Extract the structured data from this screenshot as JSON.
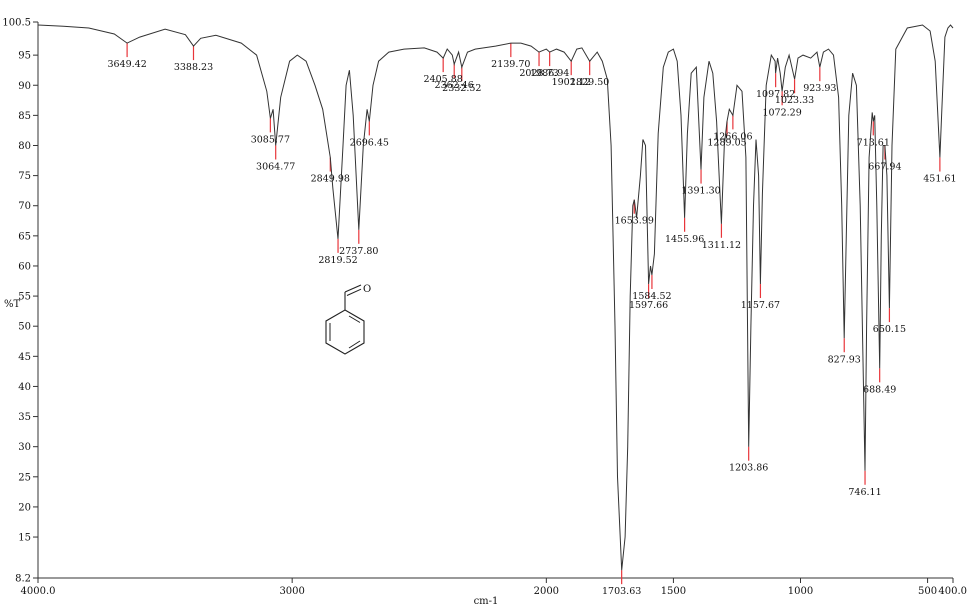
{
  "chart_data": {
    "type": "line",
    "title": "",
    "xlabel": "cm-1",
    "ylabel": "%T",
    "xlim": [
      4000.0,
      400.0
    ],
    "ylim": [
      8.2,
      100.5
    ],
    "x_reversed": true,
    "x_ticks": [
      {
        "value": 4000,
        "label": "4000.0"
      },
      {
        "value": 3000,
        "label": "3000"
      },
      {
        "value": 2000,
        "label": "2000"
      },
      {
        "value": 1500,
        "label": "1500"
      },
      {
        "value": 1000,
        "label": "1000"
      },
      {
        "value": 500,
        "label": "500"
      },
      {
        "value": 400,
        "label": "400.0"
      }
    ],
    "y_ticks": [
      {
        "value": 100.5,
        "label": "100.5"
      },
      {
        "value": 95,
        "label": "95"
      },
      {
        "value": 90,
        "label": "90"
      },
      {
        "value": 85,
        "label": "85"
      },
      {
        "value": 80,
        "label": "80"
      },
      {
        "value": 75,
        "label": "75"
      },
      {
        "value": 70,
        "label": "70"
      },
      {
        "value": 65,
        "label": "65"
      },
      {
        "value": 60,
        "label": "60"
      },
      {
        "value": 55,
        "label": "55"
      },
      {
        "value": 50,
        "label": "50"
      },
      {
        "value": 45,
        "label": "45"
      },
      {
        "value": 40,
        "label": "40"
      },
      {
        "value": 35,
        "label": "35"
      },
      {
        "value": 30,
        "label": "30"
      },
      {
        "value": 25,
        "label": "25"
      },
      {
        "value": 20,
        "label": "20"
      },
      {
        "value": 15,
        "label": "15"
      },
      {
        "value": 8.2,
        "label": "8.2"
      }
    ],
    "grid": false,
    "line_color": "#333333",
    "marker_color": "#e8353a",
    "series": [
      {
        "points": [
          [
            4000,
            100.0
          ],
          [
            3900,
            99.8
          ],
          [
            3800,
            99.5
          ],
          [
            3700,
            98.5
          ],
          [
            3649.42,
            97.0
          ],
          [
            3600,
            98.0
          ],
          [
            3500,
            99.3
          ],
          [
            3420,
            98.4
          ],
          [
            3388.23,
            96.5
          ],
          [
            3360,
            97.8
          ],
          [
            3300,
            98.3
          ],
          [
            3200,
            97.0
          ],
          [
            3140,
            95.0
          ],
          [
            3100,
            89.0
          ],
          [
            3085.77,
            84.5
          ],
          [
            3075,
            86.0
          ],
          [
            3064.77,
            80.0
          ],
          [
            3045,
            88.0
          ],
          [
            3010,
            94.0
          ],
          [
            2980,
            95.0
          ],
          [
            2945,
            94.0
          ],
          [
            2910,
            90.0
          ],
          [
            2880,
            86.0
          ],
          [
            2849.98,
            78.0
          ],
          [
            2840,
            73.0
          ],
          [
            2819.52,
            64.5
          ],
          [
            2800,
            80.0
          ],
          [
            2788,
            90.0
          ],
          [
            2775,
            92.5
          ],
          [
            2760,
            85.0
          ],
          [
            2737.8,
            66.0
          ],
          [
            2720,
            80.0
          ],
          [
            2705,
            86.0
          ],
          [
            2696.45,
            84.0
          ],
          [
            2682,
            90.0
          ],
          [
            2660,
            94.0
          ],
          [
            2620,
            95.5
          ],
          [
            2560,
            96.0
          ],
          [
            2480,
            96.2
          ],
          [
            2430,
            95.5
          ],
          [
            2405.88,
            94.5
          ],
          [
            2390,
            96.0
          ],
          [
            2370,
            95.0
          ],
          [
            2362.46,
            93.5
          ],
          [
            2345,
            95.5
          ],
          [
            2332.52,
            93.0
          ],
          [
            2310,
            95.5
          ],
          [
            2280,
            96.0
          ],
          [
            2200,
            96.5
          ],
          [
            2139.7,
            97.0
          ],
          [
            2100,
            97.0
          ],
          [
            2060,
            96.5
          ],
          [
            2028.73,
            95.5
          ],
          [
            2000,
            96.0
          ],
          [
            1986.94,
            95.5
          ],
          [
            1960,
            96.0
          ],
          [
            1930,
            95.5
          ],
          [
            1902.12,
            94.0
          ],
          [
            1880,
            96.0
          ],
          [
            1860,
            96.2
          ],
          [
            1829.5,
            94.0
          ],
          [
            1800,
            95.5
          ],
          [
            1780,
            94.0
          ],
          [
            1760,
            91.0
          ],
          [
            1745,
            80.0
          ],
          [
            1730,
            50.0
          ],
          [
            1720,
            25.0
          ],
          [
            1703.63,
            9.5
          ],
          [
            1690,
            15.0
          ],
          [
            1680,
            30.0
          ],
          [
            1670,
            55.0
          ],
          [
            1660,
            70.0
          ],
          [
            1653.99,
            71.0
          ],
          [
            1645,
            68.0
          ],
          [
            1630,
            75.0
          ],
          [
            1620,
            81.0
          ],
          [
            1610,
            80.0
          ],
          [
            1597.66,
            57.0
          ],
          [
            1590,
            60.0
          ],
          [
            1584.52,
            58.5
          ],
          [
            1575,
            62.0
          ],
          [
            1560,
            82.0
          ],
          [
            1540,
            93.0
          ],
          [
            1520,
            95.5
          ],
          [
            1500,
            96.0
          ],
          [
            1485,
            94.0
          ],
          [
            1470,
            85.0
          ],
          [
            1455.96,
            68.0
          ],
          [
            1445,
            82.0
          ],
          [
            1430,
            92.0
          ],
          [
            1410,
            93.0
          ],
          [
            1391.3,
            76.0
          ],
          [
            1380,
            88.0
          ],
          [
            1360,
            94.0
          ],
          [
            1345,
            92.0
          ],
          [
            1330,
            84.0
          ],
          [
            1311.12,
            67.0
          ],
          [
            1300,
            80.0
          ],
          [
            1289.05,
            84.0
          ],
          [
            1280,
            86.0
          ],
          [
            1266.06,
            85.0
          ],
          [
            1250,
            90.0
          ],
          [
            1230,
            89.0
          ],
          [
            1215,
            78.0
          ],
          [
            1203.86,
            30.0
          ],
          [
            1195,
            50.0
          ],
          [
            1185,
            70.0
          ],
          [
            1175,
            81.0
          ],
          [
            1165,
            75.0
          ],
          [
            1157.67,
            57.0
          ],
          [
            1150,
            72.0
          ],
          [
            1135,
            90.0
          ],
          [
            1115,
            95.0
          ],
          [
            1100,
            94.0
          ],
          [
            1097.82,
            92.0
          ],
          [
            1090,
            94.5
          ],
          [
            1080,
            92.0
          ],
          [
            1072.29,
            89.0
          ],
          [
            1060,
            93.0
          ],
          [
            1045,
            95.0
          ],
          [
            1023.33,
            91.0
          ],
          [
            1010,
            94.5
          ],
          [
            990,
            95.0
          ],
          [
            960,
            94.5
          ],
          [
            935,
            95.5
          ],
          [
            923.93,
            93.0
          ],
          [
            910,
            95.5
          ],
          [
            890,
            96.0
          ],
          [
            870,
            95.0
          ],
          [
            850,
            88.0
          ],
          [
            838,
            70.0
          ],
          [
            827.93,
            48.0
          ],
          [
            820,
            65.0
          ],
          [
            810,
            85.0
          ],
          [
            795,
            92.0
          ],
          [
            780,
            90.0
          ],
          [
            765,
            70.0
          ],
          [
            746.11,
            26.0
          ],
          [
            740,
            50.0
          ],
          [
            730,
            78.0
          ],
          [
            718,
            85.5
          ],
          [
            713.61,
            84.0
          ],
          [
            708,
            85.0
          ],
          [
            700,
            70.0
          ],
          [
            688.49,
            43.0
          ],
          [
            682,
            65.0
          ],
          [
            675,
            80.0
          ],
          [
            667.94,
            80.0
          ],
          [
            660,
            75.0
          ],
          [
            650.15,
            53.0
          ],
          [
            640,
            80.0
          ],
          [
            625,
            96.0
          ],
          [
            580,
            99.5
          ],
          [
            520,
            100.0
          ],
          [
            490,
            99.0
          ],
          [
            470,
            94.0
          ],
          [
            451.61,
            78.0
          ],
          [
            445,
            85.0
          ],
          [
            432,
            98.0
          ],
          [
            420,
            99.5
          ],
          [
            410,
            100.0
          ],
          [
            400,
            99.5
          ]
        ]
      }
    ],
    "peaks": [
      {
        "x": 3649.42,
        "label": "3649.42"
      },
      {
        "x": 3388.23,
        "label": "3388.23"
      },
      {
        "x": 3085.77,
        "label": "3085.77"
      },
      {
        "x": 3064.77,
        "label": "3064.77"
      },
      {
        "x": 2849.98,
        "label": "2849.98"
      },
      {
        "x": 2819.52,
        "label": "2819.52"
      },
      {
        "x": 2737.8,
        "label": "2737.80"
      },
      {
        "x": 2696.45,
        "label": "2696.45"
      },
      {
        "x": 2405.88,
        "label": "2405.88"
      },
      {
        "x": 2362.46,
        "label": "2362.46"
      },
      {
        "x": 2332.52,
        "label": "2332.52"
      },
      {
        "x": 2139.7,
        "label": "2139.70"
      },
      {
        "x": 2028.73,
        "label": "2028.73"
      },
      {
        "x": 1986.94,
        "label": "1986.94"
      },
      {
        "x": 1902.12,
        "label": "1902.12"
      },
      {
        "x": 1829.5,
        "label": "1829.50"
      },
      {
        "x": 1703.63,
        "label": "1703.63"
      },
      {
        "x": 1653.99,
        "label": "1653.99"
      },
      {
        "x": 1597.66,
        "label": "1597.66"
      },
      {
        "x": 1584.52,
        "label": "1584.52"
      },
      {
        "x": 1455.96,
        "label": "1455.96"
      },
      {
        "x": 1391.3,
        "label": "1391.30"
      },
      {
        "x": 1311.12,
        "label": "1311.12"
      },
      {
        "x": 1289.05,
        "label": "1289.05"
      },
      {
        "x": 1266.06,
        "label": "1266.06"
      },
      {
        "x": 1203.86,
        "label": "1203.86"
      },
      {
        "x": 1157.67,
        "label": "1157.67"
      },
      {
        "x": 1097.82,
        "label": "1097.82"
      },
      {
        "x": 1072.29,
        "label": "1072.29"
      },
      {
        "x": 1023.33,
        "label": "1023.33"
      },
      {
        "x": 923.93,
        "label": "923.93"
      },
      {
        "x": 827.93,
        "label": "827.93"
      },
      {
        "x": 746.11,
        "label": "746.11"
      },
      {
        "x": 713.61,
        "label": "713.61"
      },
      {
        "x": 688.49,
        "label": "688.49"
      },
      {
        "x": 667.94,
        "label": "667.94"
      },
      {
        "x": 650.15,
        "label": "650.15"
      },
      {
        "x": 451.61,
        "label": "451.61"
      }
    ],
    "annotations": [
      {
        "type": "structure",
        "name": "benzaldehyde-structure",
        "atom_label": "O"
      }
    ]
  }
}
